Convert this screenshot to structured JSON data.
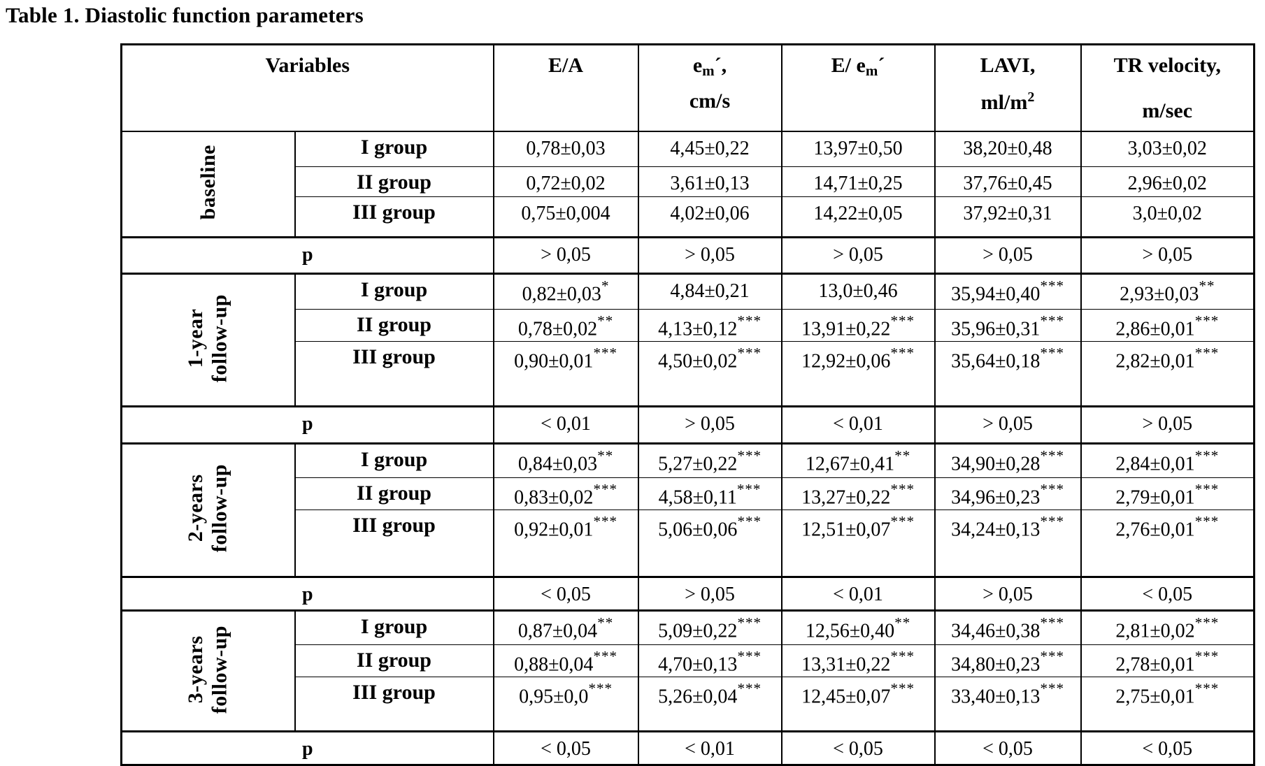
{
  "title": "Table 1. Diastolic function parameters",
  "table": {
    "header": {
      "variables": "Variables",
      "ea": "E/A",
      "em": {
        "pre": "e",
        "sub": "m",
        "post": "´,",
        "line2": "cm/s"
      },
      "eem": {
        "pre": "E/ e",
        "sub": "m",
        "post": "´"
      },
      "lavi": {
        "line1": "LAVI,",
        "base2": "ml/m",
        "sup2": "2"
      },
      "tr": {
        "line1": "TR velocity,",
        "line2": "m/sec"
      }
    },
    "sections": [
      {
        "label_lines": [
          "baseline"
        ],
        "rows": [
          {
            "group": "I group",
            "cells": [
              {
                "v": "0,78±0,03",
                "s": ""
              },
              {
                "v": "4,45±0,22",
                "s": ""
              },
              {
                "v": "13,97±0,50",
                "s": ""
              },
              {
                "v": "38,20±0,48",
                "s": ""
              },
              {
                "v": "3,03±0,02",
                "s": ""
              }
            ]
          },
          {
            "group": "II group",
            "cells": [
              {
                "v": "0,72±0,02",
                "s": ""
              },
              {
                "v": "3,61±0,13",
                "s": ""
              },
              {
                "v": "14,71±0,25",
                "s": ""
              },
              {
                "v": "37,76±0,45",
                "s": ""
              },
              {
                "v": "2,96±0,02",
                "s": ""
              }
            ]
          },
          {
            "group": "III group",
            "cells": [
              {
                "v": "0,75±0,004",
                "s": ""
              },
              {
                "v": "4,02±0,06",
                "s": ""
              },
              {
                "v": "14,22±0,05",
                "s": ""
              },
              {
                "v": "37,92±0,31",
                "s": ""
              },
              {
                "v": "3,0±0,02",
                "s": ""
              }
            ]
          }
        ],
        "p_row": {
          "label": "p",
          "values": [
            "> 0,05",
            "> 0,05",
            "> 0,05",
            "> 0,05",
            "> 0,05"
          ]
        }
      },
      {
        "label_lines": [
          "1-year",
          "follow-up"
        ],
        "rows": [
          {
            "group": "I group",
            "cells": [
              {
                "v": "0,82±0,03",
                "s": "*"
              },
              {
                "v": "4,84±0,21",
                "s": ""
              },
              {
                "v": "13,0±0,46",
                "s": ""
              },
              {
                "v": "35,94±0,40",
                "s": "***"
              },
              {
                "v": "2,93±0,03",
                "s": "**"
              }
            ]
          },
          {
            "group": "II group",
            "cells": [
              {
                "v": "0,78±0,02",
                "s": "**"
              },
              {
                "v": "4,13±0,12",
                "s": "***"
              },
              {
                "v": "13,91±0,22",
                "s": "***"
              },
              {
                "v": "35,96±0,31",
                "s": "***"
              },
              {
                "v": "2,86±0,01",
                "s": "***"
              }
            ]
          },
          {
            "group": "III group",
            "cells": [
              {
                "v": "0,90±0,01",
                "s": "***"
              },
              {
                "v": "4,50±0,02",
                "s": "***"
              },
              {
                "v": "12,92±0,06",
                "s": "***"
              },
              {
                "v": "35,64±0,18",
                "s": "***"
              },
              {
                "v": "2,82±0,01",
                "s": "***"
              }
            ]
          }
        ],
        "p_row": {
          "label": "p",
          "values": [
            "< 0,01",
            "> 0,05",
            "< 0,01",
            "> 0,05",
            "> 0,05"
          ]
        }
      },
      {
        "label_lines": [
          "2-years",
          "follow-up"
        ],
        "rows": [
          {
            "group": "I group",
            "cells": [
              {
                "v": "0,84±0,03",
                "s": "**"
              },
              {
                "v": "5,27±0,22",
                "s": "***"
              },
              {
                "v": "12,67±0,41",
                "s": "**"
              },
              {
                "v": "34,90±0,28",
                "s": "***"
              },
              {
                "v": "2,84±0,01",
                "s": "***"
              }
            ]
          },
          {
            "group": "II group",
            "cells": [
              {
                "v": "0,83±0,02",
                "s": "***"
              },
              {
                "v": "4,58±0,11",
                "s": "***"
              },
              {
                "v": "13,27±0,22",
                "s": "***"
              },
              {
                "v": "34,96±0,23",
                "s": "***"
              },
              {
                "v": "2,79±0,01",
                "s": "***"
              }
            ]
          },
          {
            "group": "III group",
            "cells": [
              {
                "v": "0,92±0,01",
                "s": "***"
              },
              {
                "v": "5,06±0,06",
                "s": "***"
              },
              {
                "v": "12,51±0,07",
                "s": "***"
              },
              {
                "v": "34,24±0,13",
                "s": "***"
              },
              {
                "v": "2,76±0,01",
                "s": "***"
              }
            ]
          }
        ],
        "p_row": {
          "label": "p",
          "values": [
            "< 0,05",
            "> 0,05",
            "< 0,01",
            "> 0,05",
            "< 0,05"
          ]
        }
      },
      {
        "label_lines": [
          "3-years",
          "follow-up"
        ],
        "rows": [
          {
            "group": "I group",
            "cells": [
              {
                "v": "0,87±0,04",
                "s": "**"
              },
              {
                "v": "5,09±0,22",
                "s": "***"
              },
              {
                "v": "12,56±0,40",
                "s": "**"
              },
              {
                "v": "34,46±0,38",
                "s": "***"
              },
              {
                "v": "2,81±0,02",
                "s": "***"
              }
            ]
          },
          {
            "group": "II group",
            "cells": [
              {
                "v": "0,88±0,04",
                "s": "***"
              },
              {
                "v": "4,70±0,13",
                "s": "***"
              },
              {
                "v": "13,31±0,22",
                "s": "***"
              },
              {
                "v": "34,80±0,23",
                "s": "***"
              },
              {
                "v": "2,78±0,01",
                "s": "***"
              }
            ]
          },
          {
            "group": "III group",
            "cells": [
              {
                "v": "0,95±0,0",
                "s": "***"
              },
              {
                "v": "5,26±0,04",
                "s": "***"
              },
              {
                "v": "12,45±0,07",
                "s": "***"
              },
              {
                "v": "33,40±0,13",
                "s": "***"
              },
              {
                "v": "2,75±0,01",
                "s": "***"
              }
            ]
          }
        ],
        "p_row": {
          "label": "p",
          "values": [
            "< 0,05",
            "< 0,01",
            "< 0,05",
            "< 0,05",
            "< 0,05"
          ]
        }
      }
    ]
  }
}
